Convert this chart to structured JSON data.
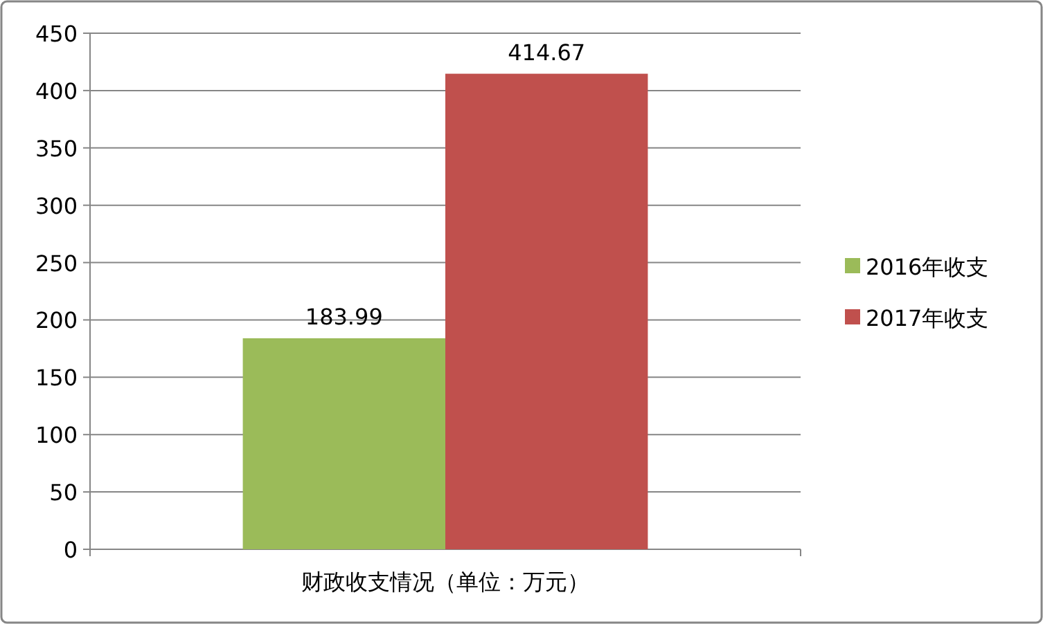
{
  "chart_data": {
    "type": "bar",
    "categories": [
      "财政收支情况（单位：万元）"
    ],
    "series": [
      {
        "name": "2016年收支",
        "color": "#9bbb59",
        "values": [
          183.99
        ]
      },
      {
        "name": "2017年收支",
        "color": "#c0504d",
        "values": [
          414.67
        ]
      }
    ],
    "ylim": [
      0,
      450
    ],
    "yticks": [
      0,
      50,
      100,
      150,
      200,
      250,
      300,
      350,
      400,
      450
    ],
    "grid": "y",
    "legend": "right",
    "data_labels": true
  }
}
